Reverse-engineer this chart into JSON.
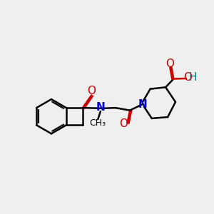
{
  "bg_color": "#efefef",
  "bond_color": "#000000",
  "N_color": "#0000cc",
  "O_color": "#cc0000",
  "H_color": "#008080",
  "line_width": 1.8,
  "font_size": 11,
  "fig_size": [
    3.0,
    3.0
  ],
  "dpi": 100,
  "xlim": [
    0,
    10
  ],
  "ylim": [
    0,
    10
  ]
}
